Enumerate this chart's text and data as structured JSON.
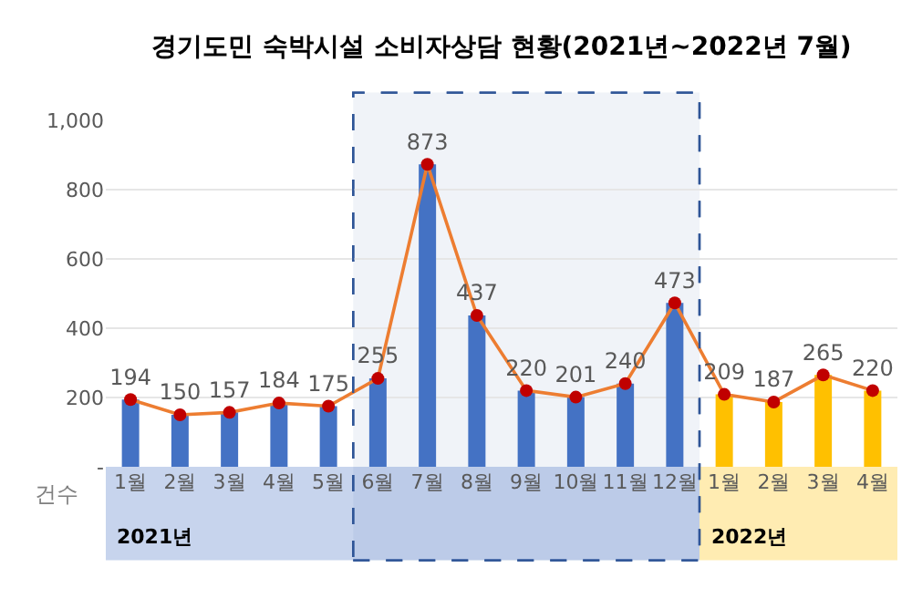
{
  "chart_data": {
    "type": "bar",
    "title": "경기도민 숙박시설 소비자상담 현황(2021년~2022년 7월)",
    "ylabel": "건수",
    "categories": [
      "1월",
      "2월",
      "3월",
      "4월",
      "5월",
      "6월",
      "7월",
      "8월",
      "9월",
      "10월",
      "11월",
      "12월",
      "1월",
      "2월",
      "3월",
      "4월"
    ],
    "series": [
      {
        "type": "line",
        "color": "#ed7d31",
        "marker": "circle",
        "colors": [
          "#c00000",
          "#c00000",
          "#c00000",
          "#c00000",
          "#c00000",
          "#c00000",
          "#c00000",
          "#c00000",
          "#c00000",
          "#c00000",
          "#c00000",
          "#c00000",
          "#c00000",
          "#c00000",
          "#c00000",
          "#c00000"
        ],
        "values": [
          194,
          150,
          157,
          184,
          175,
          255,
          873,
          437,
          220,
          201,
          240,
          473,
          209,
          187,
          265,
          220
        ],
        "value_labels": [
          "194",
          "150",
          "157",
          "184",
          "175",
          "255",
          "873",
          "437",
          "220",
          "201",
          "240",
          "473",
          "209",
          "187",
          "265",
          "220"
        ]
      },
      {
        "colors": [
          "#4472c4",
          "#4472c4",
          "#4472c4",
          "#4472c4",
          "#4472c4",
          "#4472c4",
          "#4472c4",
          "#4472c4",
          "#4472c4",
          "#4472c4",
          "#4472c4",
          "#4472c4",
          "#ffc000",
          "#ffc000",
          "#ffc000",
          "#ffc000"
        ],
        "values": [
          194,
          150,
          157,
          184,
          175,
          255,
          873,
          437,
          220,
          201,
          240,
          473,
          209,
          187,
          265,
          220
        ]
      }
    ],
    "ylim": [
      0,
      1000
    ],
    "yticks": [
      {
        "value": 0,
        "label": "-"
      },
      200,
      400,
      600,
      800,
      {
        "value": 1000,
        "label": "1,000"
      }
    ],
    "grid": "y",
    "annotations": [
      "2021년",
      "2022년"
    ],
    "bands": [
      {
        "axis": "x",
        "from": "6월",
        "to": "12월",
        "color": "#2f5597"
      }
    ]
  }
}
